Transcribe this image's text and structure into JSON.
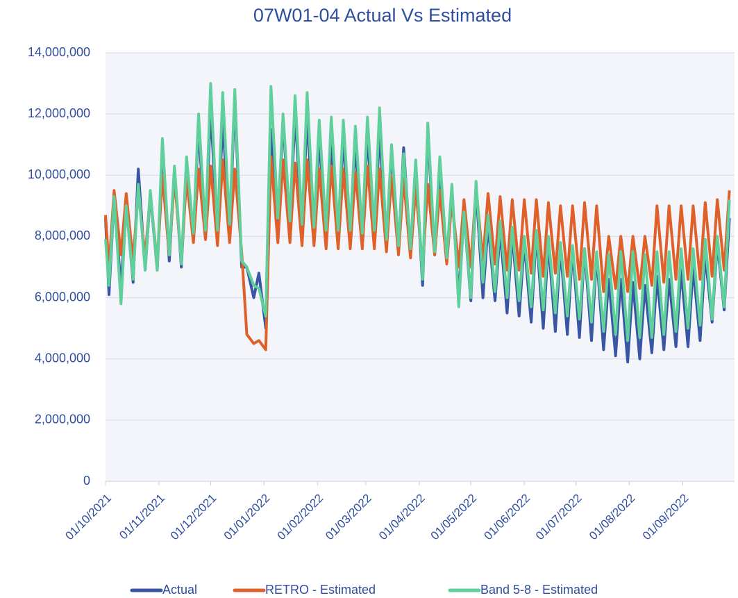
{
  "chart_data": {
    "type": "line",
    "title": "07W01-04 Actual Vs Estimated",
    "x": [
      "01/10/2021",
      "03/10/2021",
      "06/10/2021",
      "10/10/2021",
      "13/10/2021",
      "17/10/2021",
      "20/10/2021",
      "24/10/2021",
      "27/10/2021",
      "31/10/2021",
      "03/11/2021",
      "07/11/2021",
      "10/11/2021",
      "14/11/2021",
      "17/11/2021",
      "21/11/2021",
      "24/11/2021",
      "28/11/2021",
      "01/12/2021",
      "05/12/2021",
      "08/12/2021",
      "12/12/2021",
      "15/12/2021",
      "19/12/2021",
      "22/12/2021",
      "26/12/2021",
      "29/12/2021",
      "02/01/2022",
      "05/01/2022",
      "09/01/2022",
      "12/01/2022",
      "16/01/2022",
      "19/01/2022",
      "23/01/2022",
      "26/01/2022",
      "30/01/2022",
      "02/02/2022",
      "06/02/2022",
      "09/02/2022",
      "13/02/2022",
      "16/02/2022",
      "20/02/2022",
      "23/02/2022",
      "27/02/2022",
      "02/03/2022",
      "06/03/2022",
      "09/03/2022",
      "13/03/2022",
      "16/03/2022",
      "20/03/2022",
      "23/03/2022",
      "27/03/2022",
      "30/03/2022",
      "03/04/2022",
      "06/04/2022",
      "10/04/2022",
      "13/04/2022",
      "17/04/2022",
      "20/04/2022",
      "24/04/2022",
      "27/04/2022",
      "01/05/2022",
      "04/05/2022",
      "08/05/2022",
      "11/05/2022",
      "15/05/2022",
      "18/05/2022",
      "22/05/2022",
      "25/05/2022",
      "29/05/2022",
      "01/06/2022",
      "05/06/2022",
      "08/06/2022",
      "12/06/2022",
      "15/06/2022",
      "19/06/2022",
      "22/06/2022",
      "26/06/2022",
      "29/06/2022",
      "03/07/2022",
      "06/07/2022",
      "10/07/2022",
      "13/07/2022",
      "17/07/2022",
      "20/07/2022",
      "24/07/2022",
      "27/07/2022",
      "31/07/2022",
      "03/08/2022",
      "07/08/2022",
      "10/08/2022",
      "14/08/2022",
      "17/08/2022",
      "21/08/2022",
      "24/08/2022",
      "28/08/2022",
      "31/08/2022",
      "04/09/2022",
      "07/09/2022",
      "11/09/2022",
      "14/09/2022",
      "18/09/2022",
      "21/09/2022",
      "25/09/2022",
      "28/09/2022"
    ],
    "series": [
      {
        "name": "Actual",
        "color": "#3a55a4",
        "values": [
          8600000,
          6100000,
          9300000,
          6300000,
          9100000,
          6500000,
          10200000,
          6900000,
          9400000,
          6900000,
          10800000,
          7200000,
          10200000,
          7000000,
          10300000,
          8000000,
          11600000,
          7900000,
          12200000,
          8000000,
          11800000,
          8100000,
          12500000,
          7000000,
          7000000,
          6000000,
          6800000,
          5000000,
          11500000,
          8200000,
          11800000,
          8300000,
          12000000,
          8300000,
          11900000,
          8100000,
          11200000,
          8000000,
          11000000,
          8100000,
          11200000,
          8000000,
          11000000,
          8000000,
          11300000,
          8000000,
          11400000,
          7800000,
          10500000,
          7600000,
          10900000,
          7500000,
          10400000,
          6400000,
          11400000,
          7400000,
          10200000,
          7200000,
          9500000,
          6000000,
          8800000,
          5900000,
          9600000,
          6000000,
          8400000,
          5900000,
          8200000,
          5500000,
          8100000,
          5400000,
          7800000,
          5200000,
          8100000,
          5000000,
          7800000,
          4900000,
          7600000,
          4800000,
          7600000,
          4700000,
          7600000,
          4600000,
          7400000,
          4300000,
          6600000,
          4100000,
          6600000,
          3900000,
          6500000,
          4000000,
          6400000,
          4200000,
          6700000,
          4300000,
          6600000,
          4400000,
          6900000,
          4400000,
          7000000,
          4600000,
          7400000,
          5200000,
          7800000,
          5600000,
          8600000
        ]
      },
      {
        "name": "RETRO - Estimated",
        "color": "#e0602a",
        "values": [
          8700000,
          7000000,
          9500000,
          7400000,
          9400000,
          7200000,
          9500000,
          7300000,
          9400000,
          7100000,
          10000000,
          7400000,
          9900000,
          7200000,
          9900000,
          7800000,
          10200000,
          7900000,
          10300000,
          7700000,
          10500000,
          7800000,
          10200000,
          7500000,
          4800000,
          4500000,
          4600000,
          4300000,
          10600000,
          7800000,
          10500000,
          7800000,
          10400000,
          7700000,
          10500000,
          7700000,
          10200000,
          7600000,
          10300000,
          7600000,
          10200000,
          7600000,
          10100000,
          7600000,
          10300000,
          7600000,
          10200000,
          7500000,
          10000000,
          7400000,
          9900000,
          7300000,
          9600000,
          7000000,
          9700000,
          7400000,
          9500000,
          7100000,
          9200000,
          7000000,
          9200000,
          7000000,
          9600000,
          7200000,
          9400000,
          7100000,
          9300000,
          6900000,
          9200000,
          6900000,
          9200000,
          6800000,
          9200000,
          6700000,
          9100000,
          6800000,
          9000000,
          6700000,
          9000000,
          6600000,
          9100000,
          6600000,
          9000000,
          6200000,
          8000000,
          6300000,
          8000000,
          6200000,
          8000000,
          6300000,
          8000000,
          6400000,
          9000000,
          6500000,
          9000000,
          6600000,
          9000000,
          6600000,
          9000000,
          6600000,
          9100000,
          6700000,
          9200000,
          6900000,
          9500000
        ]
      },
      {
        "name": "Band 5-8 - Estimated",
        "color": "#5fd09c",
        "values": [
          7900000,
          6400000,
          9300000,
          5800000,
          9000000,
          6600000,
          9700000,
          6900000,
          9500000,
          6900000,
          11200000,
          7400000,
          10300000,
          7100000,
          10600000,
          8100000,
          12000000,
          8200000,
          13000000,
          8200000,
          12700000,
          8400000,
          12800000,
          7200000,
          7000000,
          6400000,
          6300000,
          5400000,
          12900000,
          8600000,
          12000000,
          8500000,
          12600000,
          8400000,
          12700000,
          8300000,
          11800000,
          8200000,
          11900000,
          8200000,
          11800000,
          8200000,
          11600000,
          8100000,
          11900000,
          8200000,
          12200000,
          7900000,
          11000000,
          7700000,
          10700000,
          7600000,
          10500000,
          6600000,
          11700000,
          7500000,
          10600000,
          7300000,
          9700000,
          5700000,
          8800000,
          6000000,
          9800000,
          6500000,
          8700000,
          6200000,
          8500000,
          6000000,
          8300000,
          5900000,
          8000000,
          5700000,
          8200000,
          5600000,
          8000000,
          5500000,
          7800000,
          5400000,
          7700000,
          5300000,
          7600000,
          5200000,
          7500000,
          4900000,
          7400000,
          4800000,
          7500000,
          4600000,
          7500000,
          4700000,
          7400000,
          4700000,
          7500000,
          4800000,
          7500000,
          4900000,
          7600000,
          5000000,
          7600000,
          5100000,
          7900000,
          5300000,
          8000000,
          5700000,
          9200000
        ]
      }
    ],
    "xlim": [
      "01/10/2021",
      "01/10/2022"
    ],
    "xticks": [
      "01/10/2021",
      "01/11/2021",
      "01/12/2021",
      "01/01/2022",
      "01/02/2022",
      "01/03/2022",
      "01/04/2022",
      "01/05/2022",
      "01/06/2022",
      "01/07/2022",
      "01/08/2022",
      "01/09/2022"
    ],
    "ylim": [
      0,
      14000000
    ],
    "yticks": [
      0,
      {
        "value": 2000000,
        "label": "2,000,000"
      },
      {
        "value": 4000000,
        "label": "4,000,000"
      },
      {
        "value": 6000000,
        "label": "6,000,000"
      },
      {
        "value": 8000000,
        "label": "8,000,000"
      },
      {
        "value": 10000000,
        "label": "10,000,000"
      },
      {
        "value": 12000000,
        "label": "12,000,000"
      },
      {
        "value": 14000000,
        "label": "14,000,000"
      }
    ],
    "grid": true,
    "legend": "bottom"
  }
}
